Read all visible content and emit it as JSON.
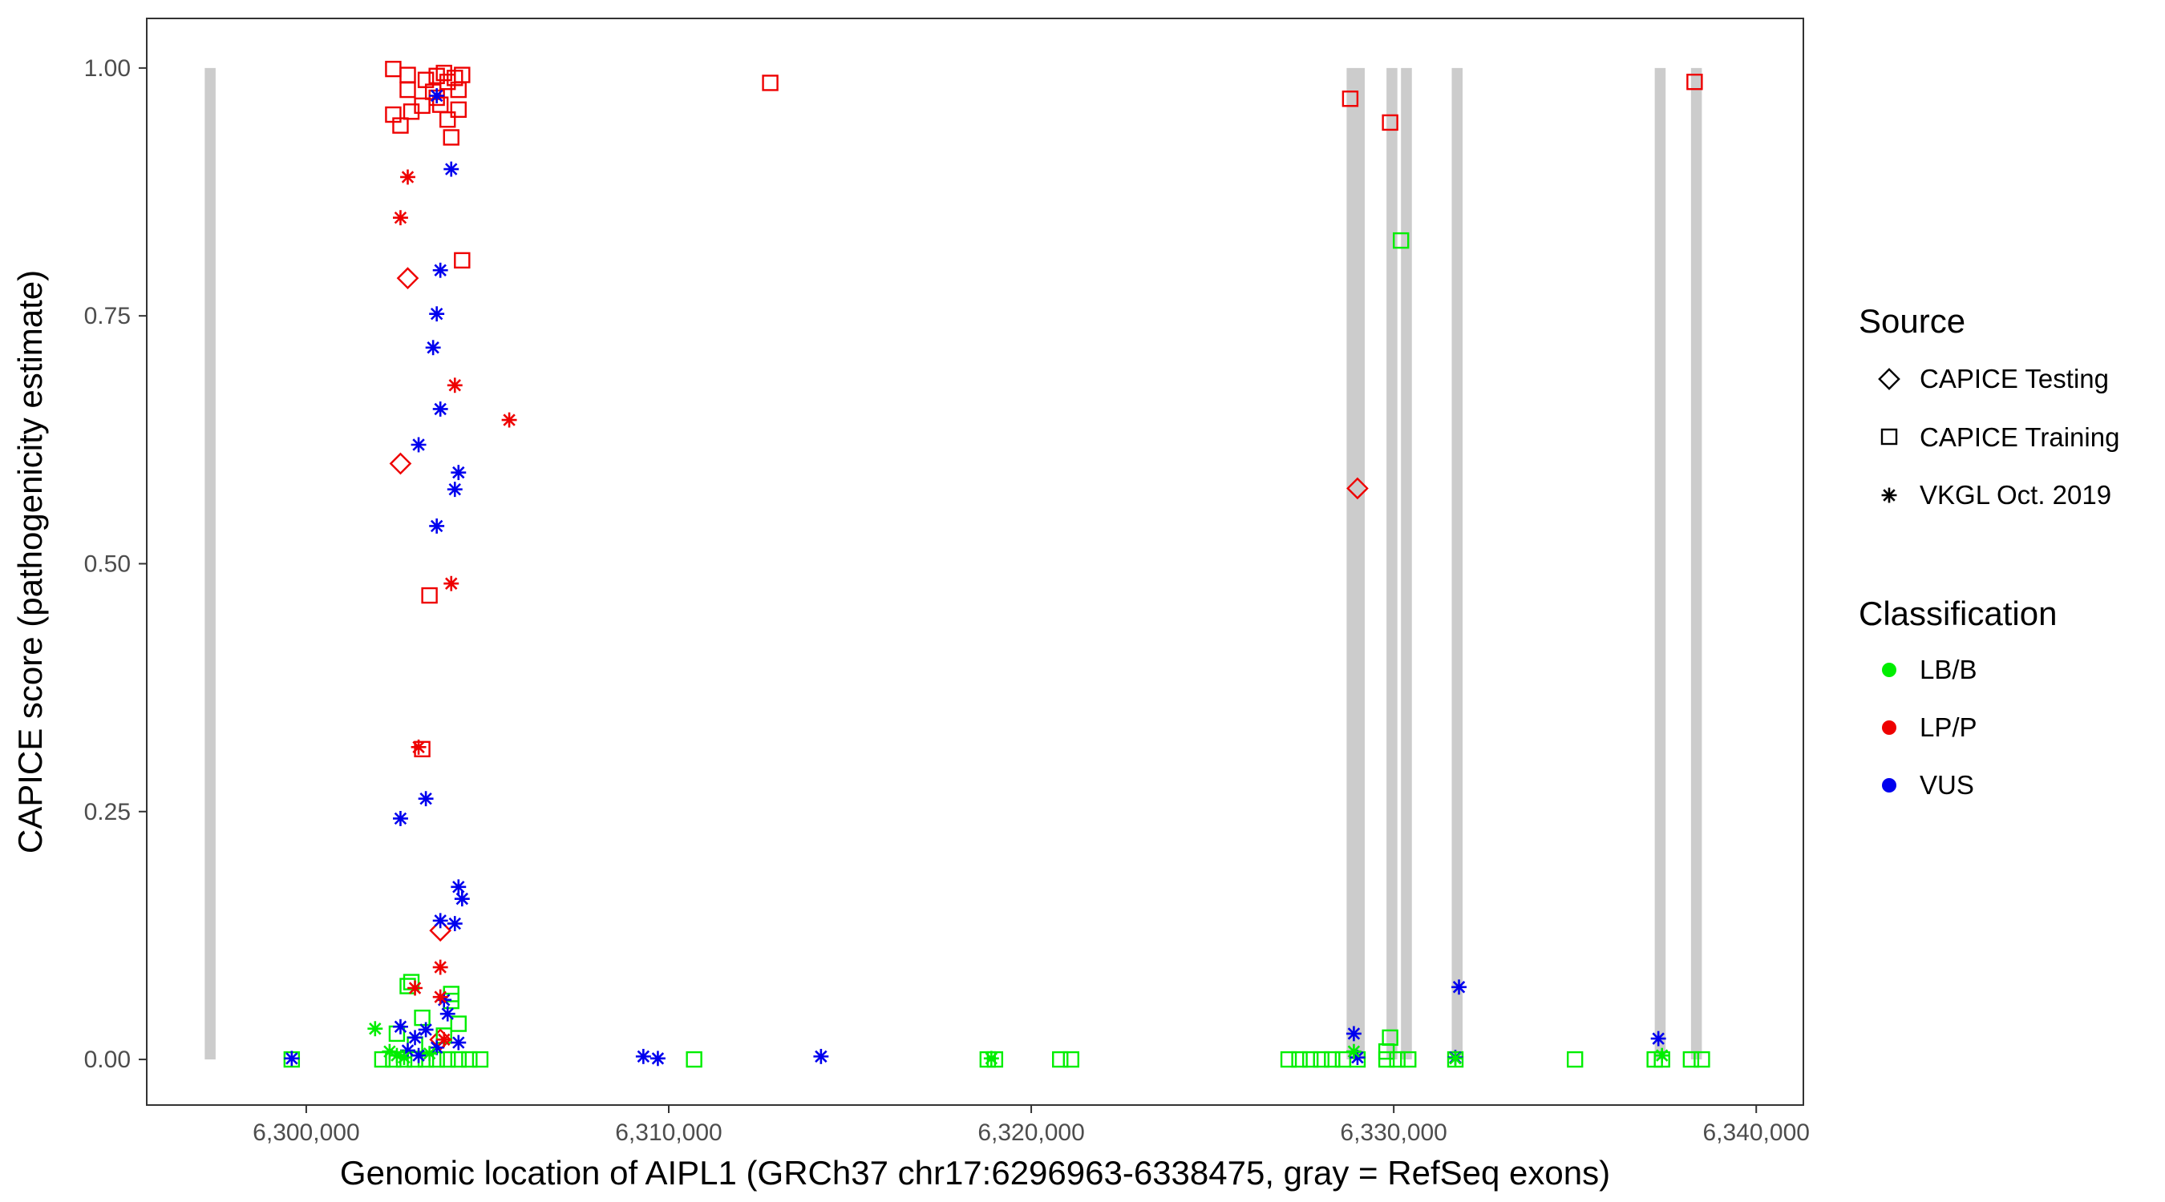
{
  "chart_data": {
    "type": "scatter",
    "xlabel": "Genomic location of AIPL1 (GRCh37 chr17:6296963-6338475, gray = RefSeq exons)",
    "ylabel": "CAPICE score (pathogenicity estimate)",
    "xlim": [
      6295600,
      6341300
    ],
    "ylim": [
      -0.046,
      1.05
    ],
    "x_ticks": [
      6300000,
      6310000,
      6320000,
      6330000,
      6340000
    ],
    "x_tick_labels": [
      "6,300,000",
      "6,310,000",
      "6,320,000",
      "6,330,000",
      "6,340,000"
    ],
    "y_ticks": [
      0.0,
      0.25,
      0.5,
      0.75,
      1.0
    ],
    "y_tick_labels": [
      "0.00",
      "0.25",
      "0.50",
      "0.75",
      "1.00"
    ],
    "grid": false,
    "exons": [
      [
        6297200,
        6297500
      ],
      [
        6328700,
        6329200
      ],
      [
        6329800,
        6330100
      ],
      [
        6330200,
        6330500
      ],
      [
        6331600,
        6331900
      ],
      [
        6337200,
        6337500
      ],
      [
        6338200,
        6338500
      ]
    ],
    "legend_position": "right",
    "legend": {
      "source_title": "Source",
      "source_items": [
        {
          "label": "CAPICE Testing",
          "shape": "diamond"
        },
        {
          "label": "CAPICE Training",
          "shape": "square"
        },
        {
          "label": "VKGL Oct. 2019",
          "shape": "asterisk"
        }
      ],
      "class_title": "Classification",
      "class_items": [
        {
          "label": "LB/B",
          "color": "#00ee00"
        },
        {
          "label": "LP/P",
          "color": "#ee0000"
        },
        {
          "label": "VUS",
          "color": "#0000ee"
        }
      ]
    },
    "series": [
      {
        "name": "CAPICE Testing",
        "shape": "diamond",
        "points": [
          [
            6302800,
            0.788,
            "LP/P"
          ],
          [
            6302600,
            0.601,
            "LP/P"
          ],
          [
            6303700,
            0.13,
            "LP/P"
          ],
          [
            6303700,
            0.02,
            "LP/P"
          ],
          [
            6329000,
            0.576,
            "LP/P"
          ]
        ]
      },
      {
        "name": "CAPICE Training",
        "shape": "square",
        "points": [
          [
            6302400,
            0.999,
            "LP/P"
          ],
          [
            6302800,
            0.993,
            "LP/P"
          ],
          [
            6303300,
            0.988,
            "LP/P"
          ],
          [
            6303600,
            0.992,
            "LP/P"
          ],
          [
            6303800,
            0.995,
            "LP/P"
          ],
          [
            6303900,
            0.986,
            "LP/P"
          ],
          [
            6304100,
            0.99,
            "LP/P"
          ],
          [
            6304300,
            0.993,
            "LP/P"
          ],
          [
            6302800,
            0.978,
            "LP/P"
          ],
          [
            6303500,
            0.976,
            "LP/P"
          ],
          [
            6304200,
            0.978,
            "LP/P"
          ],
          [
            6303200,
            0.962,
            "LP/P"
          ],
          [
            6303700,
            0.963,
            "LP/P"
          ],
          [
            6304200,
            0.958,
            "LP/P"
          ],
          [
            6302400,
            0.953,
            "LP/P"
          ],
          [
            6302900,
            0.956,
            "LP/P"
          ],
          [
            6303900,
            0.948,
            "LP/P"
          ],
          [
            6302600,
            0.942,
            "LP/P"
          ],
          [
            6304000,
            0.93,
            "LP/P"
          ],
          [
            6303600,
            0.97,
            "LP/P"
          ],
          [
            6312800,
            0.985,
            "LP/P"
          ],
          [
            6328800,
            0.969,
            "LP/P"
          ],
          [
            6329900,
            0.945,
            "LP/P"
          ],
          [
            6338300,
            0.986,
            "LP/P"
          ],
          [
            6304300,
            0.806,
            "LP/P"
          ],
          [
            6303400,
            0.468,
            "LP/P"
          ],
          [
            6303200,
            0.313,
            "LP/P"
          ],
          [
            6330200,
            0.826,
            "LB/B"
          ],
          [
            6302900,
            0.078,
            "LB/B"
          ],
          [
            6302800,
            0.074,
            "LB/B"
          ],
          [
            6304000,
            0.066,
            "LB/B"
          ],
          [
            6304000,
            0.059,
            "LB/B"
          ],
          [
            6303200,
            0.042,
            "LB/B"
          ],
          [
            6304200,
            0.036,
            "LB/B"
          ],
          [
            6302500,
            0.026,
            "LB/B"
          ],
          [
            6303800,
            0.024,
            "LB/B"
          ],
          [
            6303000,
            0.015,
            "LB/B"
          ],
          [
            6329900,
            0.022,
            "LB/B"
          ],
          [
            6329800,
            0.008,
            "LB/B"
          ],
          [
            6299600,
            0.0,
            "LB/B"
          ],
          [
            6302100,
            0.0,
            "LB/B"
          ],
          [
            6302400,
            0.0,
            "LB/B"
          ],
          [
            6302700,
            0.0,
            "LB/B"
          ],
          [
            6303000,
            0.0,
            "LB/B"
          ],
          [
            6303300,
            0.0,
            "LB/B"
          ],
          [
            6303600,
            0.0,
            "LB/B"
          ],
          [
            6303900,
            0.0,
            "LB/B"
          ],
          [
            6304200,
            0.0,
            "LB/B"
          ],
          [
            6304500,
            0.0,
            "LB/B"
          ],
          [
            6304800,
            0.0,
            "LB/B"
          ],
          [
            6310700,
            0.0,
            "LB/B"
          ],
          [
            6318800,
            0.0,
            "LB/B"
          ],
          [
            6319000,
            0.0,
            "LB/B"
          ],
          [
            6320800,
            0.0,
            "LB/B"
          ],
          [
            6321100,
            0.0,
            "LB/B"
          ],
          [
            6327100,
            0.0,
            "LB/B"
          ],
          [
            6327400,
            0.0,
            "LB/B"
          ],
          [
            6327700,
            0.0,
            "LB/B"
          ],
          [
            6328000,
            0.0,
            "LB/B"
          ],
          [
            6328300,
            0.0,
            "LB/B"
          ],
          [
            6328600,
            0.0,
            "LB/B"
          ],
          [
            6329000,
            0.0,
            "LB/B"
          ],
          [
            6329800,
            0.0,
            "LB/B"
          ],
          [
            6330100,
            0.0,
            "LB/B"
          ],
          [
            6330400,
            0.0,
            "LB/B"
          ],
          [
            6331700,
            0.0,
            "LB/B"
          ],
          [
            6335000,
            0.0,
            "LB/B"
          ],
          [
            6337200,
            0.0,
            "LB/B"
          ],
          [
            6337400,
            0.0,
            "LB/B"
          ],
          [
            6338200,
            0.0,
            "LB/B"
          ],
          [
            6338500,
            0.0,
            "LB/B"
          ]
        ]
      },
      {
        "name": "VKGL Oct. 2019",
        "shape": "asterisk",
        "points": [
          [
            6303600,
            0.972,
            "VUS"
          ],
          [
            6304000,
            0.898,
            "VUS"
          ],
          [
            6303700,
            0.796,
            "VUS"
          ],
          [
            6303600,
            0.752,
            "VUS"
          ],
          [
            6303500,
            0.718,
            "VUS"
          ],
          [
            6303700,
            0.656,
            "VUS"
          ],
          [
            6303100,
            0.62,
            "VUS"
          ],
          [
            6304200,
            0.592,
            "VUS"
          ],
          [
            6304100,
            0.575,
            "VUS"
          ],
          [
            6303600,
            0.538,
            "VUS"
          ],
          [
            6303300,
            0.263,
            "VUS"
          ],
          [
            6302600,
            0.243,
            "VUS"
          ],
          [
            6304200,
            0.174,
            "VUS"
          ],
          [
            6304300,
            0.162,
            "VUS"
          ],
          [
            6303700,
            0.14,
            "VUS"
          ],
          [
            6304100,
            0.137,
            "VUS"
          ],
          [
            6303800,
            0.06,
            "VUS"
          ],
          [
            6303900,
            0.046,
            "VUS"
          ],
          [
            6302600,
            0.033,
            "VUS"
          ],
          [
            6303300,
            0.03,
            "VUS"
          ],
          [
            6303000,
            0.022,
            "VUS"
          ],
          [
            6304200,
            0.017,
            "VUS"
          ],
          [
            6303600,
            0.012,
            "VUS"
          ],
          [
            6302800,
            0.009,
            "VUS"
          ],
          [
            6303100,
            0.004,
            "VUS"
          ],
          [
            6299600,
            0.001,
            "VUS"
          ],
          [
            6309300,
            0.003,
            "VUS"
          ],
          [
            6309700,
            0.001,
            "VUS"
          ],
          [
            6314200,
            0.003,
            "VUS"
          ],
          [
            6328900,
            0.026,
            "VUS"
          ],
          [
            6329000,
            0.002,
            "VUS"
          ],
          [
            6331800,
            0.073,
            "VUS"
          ],
          [
            6331700,
            0.002,
            "VUS"
          ],
          [
            6337300,
            0.021,
            "VUS"
          ],
          [
            6302800,
            0.89,
            "LP/P"
          ],
          [
            6302600,
            0.849,
            "LP/P"
          ],
          [
            6304100,
            0.68,
            "LP/P"
          ],
          [
            6305600,
            0.645,
            "LP/P"
          ],
          [
            6304000,
            0.48,
            "LP/P"
          ],
          [
            6303100,
            0.315,
            "LP/P"
          ],
          [
            6303700,
            0.093,
            "LP/P"
          ],
          [
            6303000,
            0.072,
            "LP/P"
          ],
          [
            6303700,
            0.063,
            "LP/P"
          ],
          [
            6303800,
            0.02,
            "LP/P"
          ],
          [
            6301900,
            0.031,
            "LB/B"
          ],
          [
            6302300,
            0.008,
            "LB/B"
          ],
          [
            6302500,
            0.004,
            "LB/B"
          ],
          [
            6302700,
            0.002,
            "LB/B"
          ],
          [
            6303400,
            0.006,
            "LB/B"
          ],
          [
            6318900,
            0.001,
            "LB/B"
          ],
          [
            6328900,
            0.008,
            "LB/B"
          ],
          [
            6331700,
            0.001,
            "LB/B"
          ],
          [
            6337400,
            0.004,
            "LB/B"
          ]
        ]
      }
    ]
  }
}
